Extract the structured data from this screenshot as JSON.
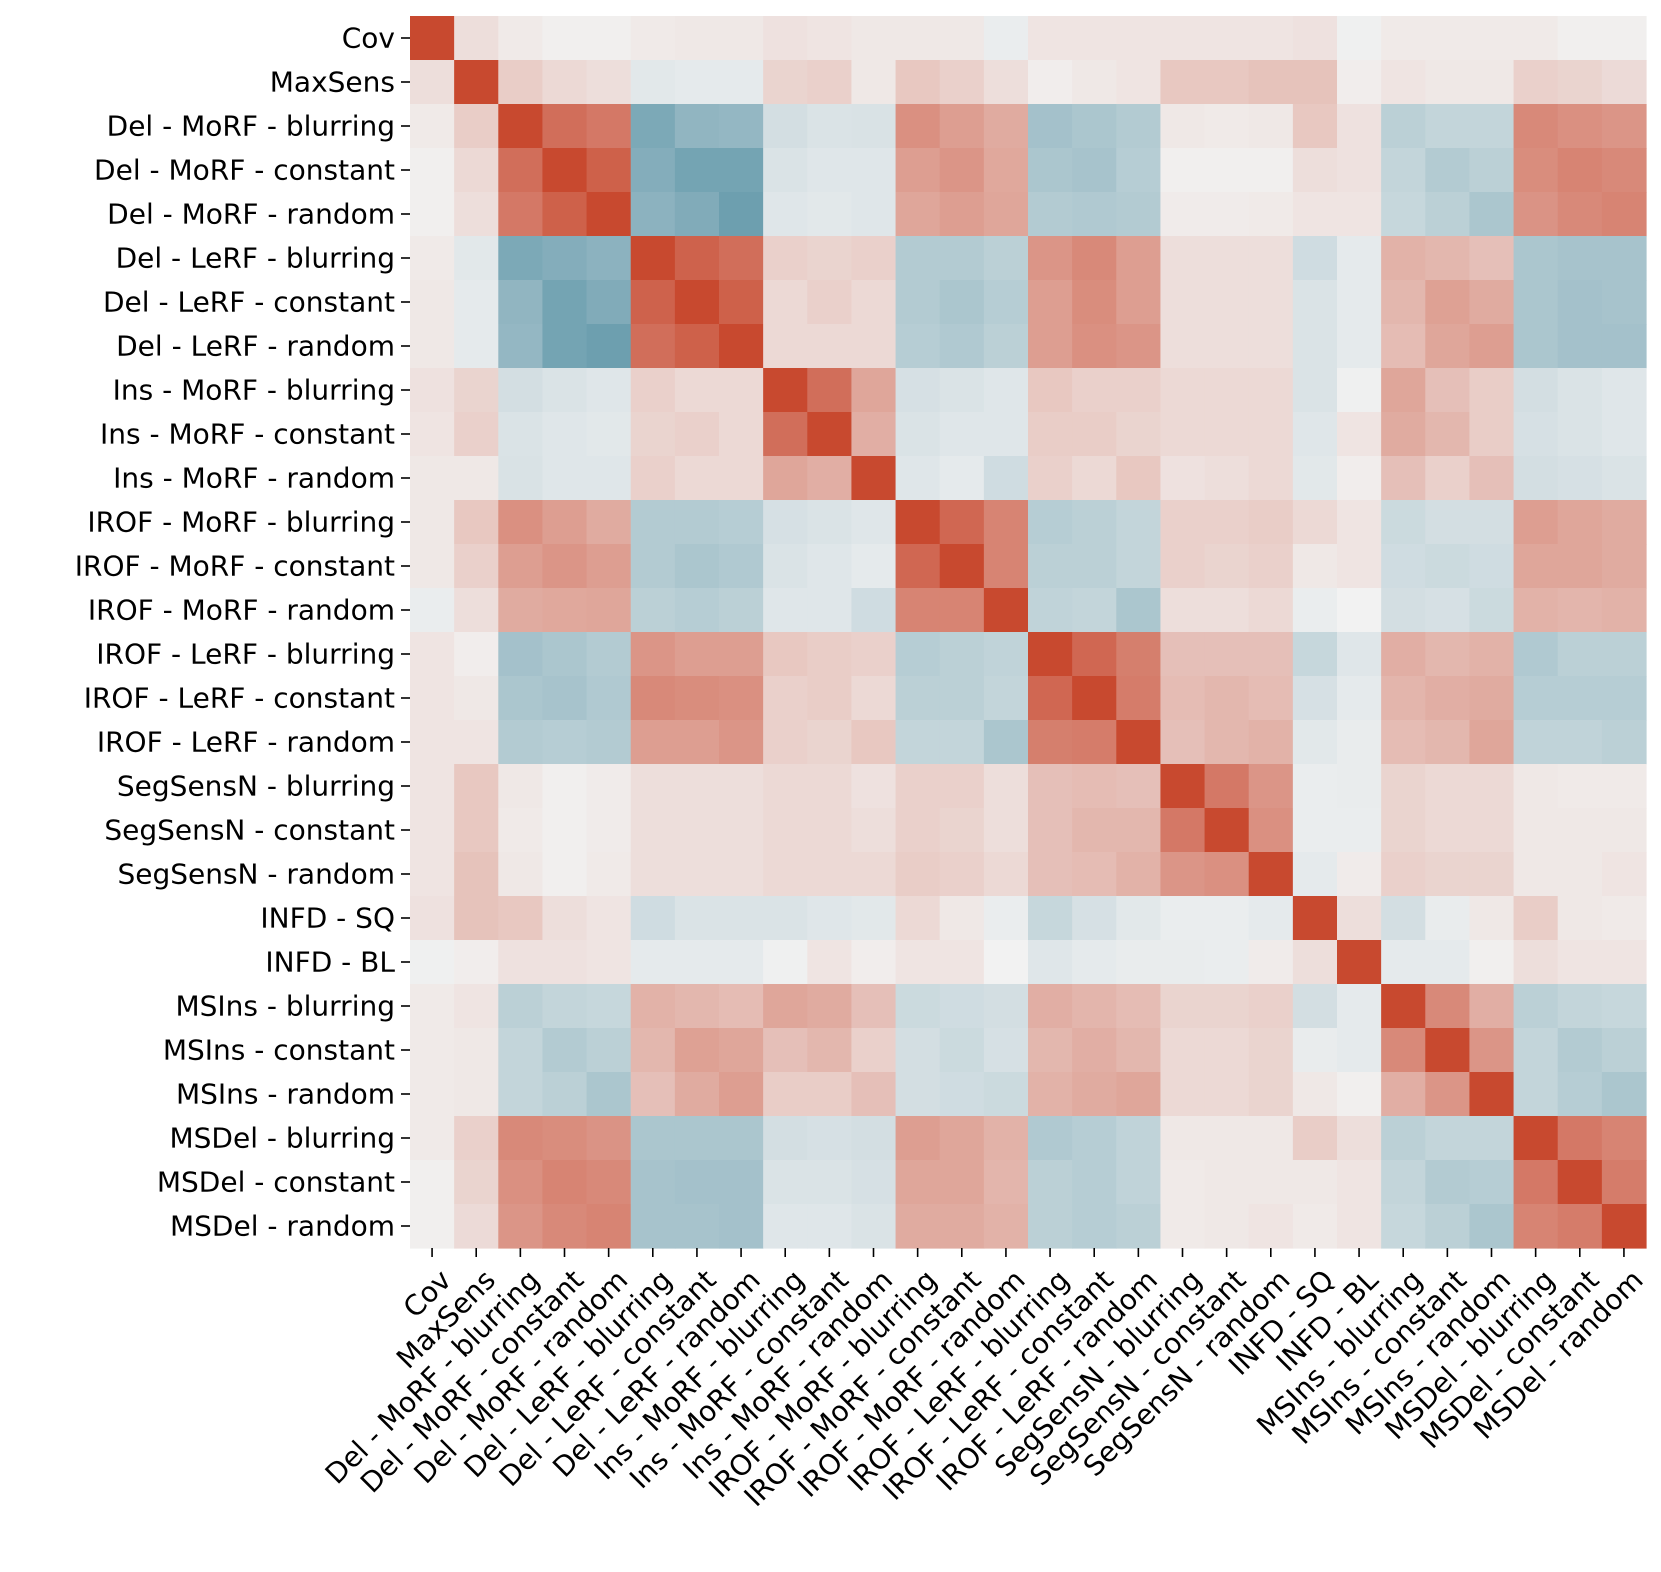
{
  "chart_data": {
    "type": "heatmap",
    "title": "",
    "xlabel": "",
    "ylabel": "",
    "colormap": "diverging blue-white-red",
    "value_range": [
      -1,
      1
    ],
    "colors": {
      "negative": "#5590a3",
      "neutral": "#f2f2f2",
      "positive": "#c8492f"
    },
    "labels": [
      "Cov",
      "MaxSens",
      "Del - MoRF - blurring",
      "Del - MoRF - constant",
      "Del - MoRF - random",
      "Del - LeRF - blurring",
      "Del - LeRF - constant",
      "Del - LeRF - random",
      "Ins - MoRF - blurring",
      "Ins - MoRF - constant",
      "Ins - MoRF - random",
      "IROF - MoRF - blurring",
      "IROF - MoRF - constant",
      "IROF - MoRF - random",
      "IROF - LeRF - blurring",
      "IROF - LeRF - constant",
      "IROF - LeRF - random",
      "SegSensN - blurring",
      "SegSensN - constant",
      "SegSensN - random",
      "INFD - SQ",
      "INFD - BL",
      "MSIns - blurring",
      "MSIns - constant",
      "MSIns - random",
      "MSDel - blurring",
      "MSDel - constant",
      "MSDel - random"
    ],
    "matrix": [
      [
        1.0,
        0.12,
        0.05,
        0.02,
        0.02,
        0.05,
        0.06,
        0.06,
        0.1,
        0.08,
        0.06,
        0.06,
        0.06,
        -0.05,
        0.08,
        0.08,
        0.08,
        0.08,
        0.08,
        0.08,
        0.1,
        -0.02,
        0.05,
        0.05,
        0.05,
        0.05,
        0.02,
        0.02
      ],
      [
        0.12,
        1.0,
        0.22,
        0.15,
        0.12,
        -0.1,
        -0.08,
        -0.08,
        0.18,
        0.2,
        0.06,
        0.25,
        0.2,
        0.12,
        0.03,
        0.06,
        0.08,
        0.25,
        0.25,
        0.28,
        0.28,
        0.03,
        0.08,
        0.06,
        0.06,
        0.2,
        0.18,
        0.14
      ],
      [
        0.05,
        0.22,
        1.0,
        0.78,
        0.72,
        -0.75,
        -0.62,
        -0.6,
        -0.2,
        -0.15,
        -0.16,
        0.58,
        0.5,
        0.42,
        -0.5,
        -0.45,
        -0.4,
        0.06,
        0.05,
        0.06,
        0.25,
        0.1,
        -0.35,
        -0.3,
        -0.3,
        0.62,
        0.58,
        0.55
      ],
      [
        0.02,
        0.15,
        0.78,
        1.0,
        0.86,
        -0.7,
        -0.8,
        -0.8,
        -0.15,
        -0.12,
        -0.12,
        0.5,
        0.55,
        0.44,
        -0.45,
        -0.48,
        -0.38,
        0.02,
        0.02,
        0.02,
        0.12,
        0.1,
        -0.3,
        -0.4,
        -0.35,
        0.6,
        0.65,
        0.62
      ],
      [
        0.02,
        0.12,
        0.72,
        0.86,
        1.0,
        -0.65,
        -0.72,
        -0.85,
        -0.12,
        -0.1,
        -0.12,
        0.45,
        0.5,
        0.45,
        -0.4,
        -0.42,
        -0.4,
        0.04,
        0.04,
        0.05,
        0.08,
        0.08,
        -0.28,
        -0.35,
        -0.45,
        0.56,
        0.62,
        0.65
      ],
      [
        0.05,
        -0.1,
        -0.75,
        -0.7,
        -0.65,
        1.0,
        0.85,
        0.78,
        0.2,
        0.18,
        0.2,
        -0.4,
        -0.4,
        -0.35,
        0.55,
        0.62,
        0.5,
        0.12,
        0.12,
        0.12,
        -0.22,
        -0.08,
        0.38,
        0.35,
        0.3,
        -0.45,
        -0.48,
        -0.48
      ],
      [
        0.06,
        -0.08,
        -0.62,
        -0.8,
        -0.72,
        0.85,
        1.0,
        0.86,
        0.15,
        0.2,
        0.15,
        -0.4,
        -0.45,
        -0.38,
        0.5,
        0.6,
        0.5,
        0.12,
        0.12,
        0.12,
        -0.15,
        -0.08,
        0.35,
        0.48,
        0.42,
        -0.45,
        -0.5,
        -0.48
      ],
      [
        0.06,
        -0.08,
        -0.6,
        -0.8,
        -0.85,
        0.78,
        0.86,
        1.0,
        0.15,
        0.15,
        0.15,
        -0.38,
        -0.42,
        -0.35,
        0.5,
        0.58,
        0.55,
        0.12,
        0.12,
        0.12,
        -0.15,
        -0.08,
        0.32,
        0.45,
        0.5,
        -0.45,
        -0.5,
        -0.5
      ],
      [
        0.1,
        0.18,
        -0.2,
        -0.15,
        -0.12,
        0.2,
        0.15,
        0.15,
        1.0,
        0.78,
        0.45,
        -0.18,
        -0.15,
        -0.12,
        0.25,
        0.2,
        0.2,
        0.15,
        0.15,
        0.15,
        -0.15,
        -0.02,
        0.45,
        0.3,
        0.22,
        -0.2,
        -0.15,
        -0.12
      ],
      [
        0.08,
        0.2,
        -0.15,
        -0.12,
        -0.1,
        0.18,
        0.2,
        0.15,
        0.78,
        1.0,
        0.4,
        -0.15,
        -0.12,
        -0.12,
        0.22,
        0.22,
        0.18,
        0.15,
        0.15,
        0.15,
        -0.12,
        0.08,
        0.42,
        0.35,
        0.22,
        -0.18,
        -0.15,
        -0.12
      ],
      [
        0.06,
        0.06,
        -0.16,
        -0.12,
        -0.12,
        0.2,
        0.15,
        0.15,
        0.45,
        0.4,
        1.0,
        -0.12,
        -0.08,
        -0.22,
        0.2,
        0.15,
        0.25,
        0.1,
        0.12,
        0.15,
        -0.1,
        0.03,
        0.3,
        0.2,
        0.3,
        -0.2,
        -0.18,
        -0.15
      ],
      [
        0.06,
        0.25,
        0.58,
        0.5,
        0.42,
        -0.4,
        -0.4,
        -0.38,
        -0.18,
        -0.15,
        -0.12,
        1.0,
        0.82,
        0.65,
        -0.38,
        -0.35,
        -0.3,
        0.2,
        0.2,
        0.22,
        0.15,
        0.08,
        -0.25,
        -0.2,
        -0.2,
        0.5,
        0.45,
        0.42
      ],
      [
        0.06,
        0.2,
        0.5,
        0.55,
        0.5,
        -0.4,
        -0.45,
        -0.42,
        -0.15,
        -0.12,
        -0.08,
        0.82,
        1.0,
        0.65,
        -0.35,
        -0.35,
        -0.3,
        0.2,
        0.18,
        0.2,
        0.06,
        0.08,
        -0.22,
        -0.25,
        -0.22,
        0.45,
        0.45,
        0.42
      ],
      [
        -0.05,
        0.12,
        0.42,
        0.44,
        0.45,
        -0.35,
        -0.38,
        -0.35,
        -0.12,
        -0.12,
        -0.22,
        0.65,
        0.65,
        1.0,
        -0.32,
        -0.3,
        -0.45,
        0.12,
        0.12,
        0.15,
        -0.05,
        0.0,
        -0.2,
        -0.18,
        -0.25,
        0.38,
        0.36,
        0.38
      ],
      [
        0.08,
        0.03,
        -0.5,
        -0.45,
        -0.4,
        0.55,
        0.5,
        0.5,
        0.25,
        0.22,
        0.2,
        -0.38,
        -0.35,
        -0.32,
        1.0,
        0.82,
        0.68,
        0.3,
        0.3,
        0.3,
        -0.28,
        -0.12,
        0.4,
        0.35,
        0.38,
        -0.42,
        -0.35,
        -0.35
      ],
      [
        0.08,
        0.06,
        -0.45,
        -0.48,
        -0.42,
        0.62,
        0.6,
        0.58,
        0.2,
        0.22,
        0.15,
        -0.35,
        -0.35,
        -0.3,
        0.82,
        1.0,
        0.7,
        0.32,
        0.35,
        0.32,
        -0.18,
        -0.08,
        0.36,
        0.4,
        0.42,
        -0.38,
        -0.38,
        -0.38
      ],
      [
        0.08,
        0.08,
        -0.4,
        -0.38,
        -0.4,
        0.5,
        0.5,
        0.55,
        0.2,
        0.18,
        0.25,
        -0.3,
        -0.3,
        -0.45,
        0.68,
        0.7,
        1.0,
        0.3,
        0.35,
        0.38,
        -0.1,
        -0.06,
        0.32,
        0.35,
        0.45,
        -0.32,
        -0.32,
        -0.35
      ],
      [
        0.08,
        0.25,
        0.06,
        0.02,
        0.04,
        0.12,
        0.12,
        0.12,
        0.15,
        0.15,
        0.1,
        0.2,
        0.2,
        0.12,
        0.3,
        0.32,
        0.3,
        1.0,
        0.72,
        0.55,
        -0.05,
        -0.06,
        0.18,
        0.15,
        0.15,
        0.06,
        0.05,
        0.05
      ],
      [
        0.08,
        0.25,
        0.05,
        0.02,
        0.04,
        0.12,
        0.12,
        0.12,
        0.15,
        0.15,
        0.12,
        0.2,
        0.18,
        0.12,
        0.3,
        0.35,
        0.35,
        0.72,
        1.0,
        0.58,
        -0.05,
        -0.05,
        0.18,
        0.15,
        0.15,
        0.06,
        0.06,
        0.06
      ],
      [
        0.08,
        0.28,
        0.06,
        0.02,
        0.05,
        0.12,
        0.12,
        0.12,
        0.15,
        0.15,
        0.15,
        0.22,
        0.2,
        0.15,
        0.3,
        0.32,
        0.38,
        0.55,
        0.58,
        1.0,
        -0.08,
        0.04,
        0.2,
        0.18,
        0.18,
        0.06,
        0.06,
        0.08
      ],
      [
        0.1,
        0.28,
        0.25,
        0.12,
        0.08,
        -0.22,
        -0.15,
        -0.15,
        -0.15,
        -0.12,
        -0.1,
        0.15,
        0.06,
        -0.05,
        -0.28,
        -0.18,
        -0.1,
        -0.05,
        -0.05,
        -0.08,
        1.0,
        0.12,
        -0.2,
        -0.06,
        0.06,
        0.22,
        0.06,
        0.05
      ],
      [
        -0.02,
        0.03,
        0.1,
        0.1,
        0.08,
        -0.08,
        -0.08,
        -0.08,
        -0.02,
        0.08,
        0.03,
        0.08,
        0.08,
        0.0,
        -0.12,
        -0.08,
        -0.06,
        -0.06,
        -0.05,
        0.04,
        0.12,
        1.0,
        -0.08,
        -0.08,
        0.02,
        0.12,
        0.08,
        0.08
      ],
      [
        0.05,
        0.08,
        -0.35,
        -0.3,
        -0.28,
        0.38,
        0.35,
        0.32,
        0.45,
        0.42,
        0.3,
        -0.25,
        -0.22,
        -0.2,
        0.4,
        0.36,
        0.32,
        0.18,
        0.18,
        0.2,
        -0.2,
        -0.08,
        1.0,
        0.62,
        0.4,
        -0.35,
        -0.3,
        -0.28
      ],
      [
        0.05,
        0.06,
        -0.3,
        -0.4,
        -0.35,
        0.35,
        0.48,
        0.45,
        0.3,
        0.35,
        0.2,
        -0.2,
        -0.25,
        -0.18,
        0.35,
        0.4,
        0.35,
        0.15,
        0.15,
        0.18,
        -0.06,
        -0.08,
        0.62,
        1.0,
        0.55,
        -0.3,
        -0.4,
        -0.35
      ],
      [
        0.05,
        0.06,
        -0.3,
        -0.35,
        -0.45,
        0.3,
        0.42,
        0.5,
        0.22,
        0.22,
        0.3,
        -0.2,
        -0.22,
        -0.25,
        0.38,
        0.42,
        0.45,
        0.15,
        0.15,
        0.18,
        0.06,
        0.02,
        0.4,
        0.55,
        1.0,
        -0.3,
        -0.38,
        -0.45
      ],
      [
        0.05,
        0.2,
        0.62,
        0.6,
        0.56,
        -0.45,
        -0.45,
        -0.45,
        -0.2,
        -0.18,
        -0.2,
        0.5,
        0.45,
        0.38,
        -0.42,
        -0.38,
        -0.32,
        0.06,
        0.06,
        0.06,
        0.22,
        0.12,
        -0.35,
        -0.3,
        -0.3,
        1.0,
        0.72,
        0.65
      ],
      [
        0.02,
        0.18,
        0.58,
        0.65,
        0.62,
        -0.48,
        -0.5,
        -0.5,
        -0.15,
        -0.15,
        -0.18,
        0.45,
        0.45,
        0.36,
        -0.35,
        -0.38,
        -0.32,
        0.05,
        0.06,
        0.06,
        0.06,
        0.08,
        -0.3,
        -0.4,
        -0.38,
        0.72,
        1.0,
        0.7
      ],
      [
        0.02,
        0.14,
        0.55,
        0.62,
        0.65,
        -0.48,
        -0.48,
        -0.5,
        -0.12,
        -0.12,
        -0.15,
        0.42,
        0.42,
        0.38,
        -0.35,
        -0.38,
        -0.35,
        0.05,
        0.06,
        0.08,
        0.05,
        0.08,
        -0.28,
        -0.35,
        -0.45,
        0.65,
        0.7,
        1.0
      ]
    ]
  }
}
